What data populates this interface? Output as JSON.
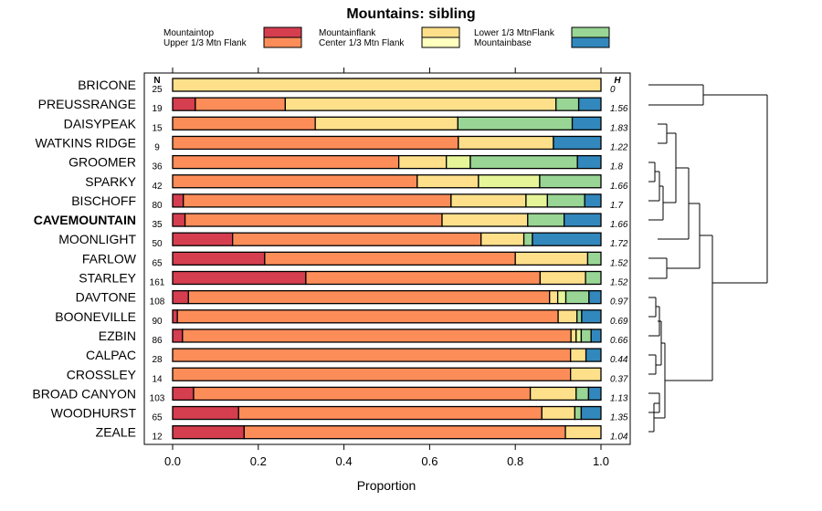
{
  "chart_data": {
    "type": "stacked-horizontal-bar",
    "title": "Mountains: sibling",
    "xlabel": "Proportion",
    "xlim": [
      0,
      1
    ],
    "x_ticks": [
      "0.0",
      "0.2",
      "0.4",
      "0.6",
      "0.8",
      "1.0"
    ],
    "n_header": "N",
    "h_header": "H",
    "legend": [
      {
        "name": "Mountaintop",
        "color": "#d53e4f"
      },
      {
        "name": "Upper 1/3 Mtn Flank",
        "color": "#fc8d59"
      },
      {
        "name": "Mountainflank",
        "color": "#fee08b"
      },
      {
        "name": "Center 1/3 Mtn Flank",
        "color": "#ffffbf"
      },
      {
        "name": "Lower 1/3 MtnFlank",
        "color": "#99d594"
      },
      {
        "name": "Mountainbase",
        "color": "#3288bd"
      }
    ],
    "segment_colors": [
      "#d53e4f",
      "#fc8d59",
      "#fee08b",
      "#e6f598",
      "#99d594",
      "#3288bd"
    ],
    "rows": [
      {
        "label": "BRICONE",
        "n": "25",
        "h": "0",
        "bold": false,
        "values": [
          0,
          0,
          1.0,
          0,
          0,
          0
        ]
      },
      {
        "label": "PREUSSRANGE",
        "n": "19",
        "h": "1.56",
        "bold": false,
        "values": [
          0.053,
          0.21,
          0.632,
          0,
          0.053,
          0.052
        ]
      },
      {
        "label": "DAISYPEAK",
        "n": "15",
        "h": "1.83",
        "bold": false,
        "values": [
          0,
          0.333,
          0.333,
          0,
          0.267,
          0.067
        ]
      },
      {
        "label": "WATKINS RIDGE",
        "n": "9",
        "h": "1.22",
        "bold": false,
        "values": [
          0,
          0.667,
          0.222,
          0,
          0,
          0.111
        ]
      },
      {
        "label": "GROOMER",
        "n": "36",
        "h": "1.8",
        "bold": false,
        "values": [
          0,
          0.528,
          0.111,
          0.056,
          0.25,
          0.055
        ]
      },
      {
        "label": "SPARKY",
        "n": "42",
        "h": "1.66",
        "bold": false,
        "values": [
          0,
          0.571,
          0.143,
          0.143,
          0.143,
          0
        ]
      },
      {
        "label": "BISCHOFF",
        "n": "80",
        "h": "1.7",
        "bold": false,
        "values": [
          0.025,
          0.625,
          0.175,
          0.05,
          0.087,
          0.038
        ]
      },
      {
        "label": "CAVEMOUNTAIN",
        "n": "35",
        "h": "1.66",
        "bold": true,
        "values": [
          0.029,
          0.6,
          0.2,
          0,
          0.085,
          0.086
        ]
      },
      {
        "label": "MOONLIGHT",
        "n": "50",
        "h": "1.72",
        "bold": false,
        "values": [
          0.14,
          0.58,
          0.1,
          0,
          0.02,
          0.16
        ]
      },
      {
        "label": "FARLOW",
        "n": "65",
        "h": "1.52",
        "bold": false,
        "values": [
          0.215,
          0.585,
          0.169,
          0,
          0.031,
          0
        ]
      },
      {
        "label": "STARLEY",
        "n": "161",
        "h": "1.52",
        "bold": false,
        "values": [
          0.311,
          0.547,
          0.106,
          0,
          0.036,
          0
        ]
      },
      {
        "label": "DAVTONE",
        "n": "108",
        "h": "0.97",
        "bold": false,
        "values": [
          0.037,
          0.843,
          0.019,
          0.019,
          0.054,
          0.028
        ]
      },
      {
        "label": "BOONEVILLE",
        "n": "90",
        "h": "0.69",
        "bold": false,
        "values": [
          0.011,
          0.889,
          0.044,
          0,
          0.011,
          0.045
        ]
      },
      {
        "label": "EZBIN",
        "n": "86",
        "h": "0.66",
        "bold": false,
        "values": [
          0.023,
          0.907,
          0.012,
          0.012,
          0.023,
          0.023
        ]
      },
      {
        "label": "CALPAC",
        "n": "28",
        "h": "0.44",
        "bold": false,
        "values": [
          0,
          0.929,
          0.036,
          0,
          0,
          0.035
        ]
      },
      {
        "label": "CROSSLEY",
        "n": "14",
        "h": "0.37",
        "bold": false,
        "values": [
          0,
          0.929,
          0.071,
          0,
          0,
          0
        ]
      },
      {
        "label": "BROAD CANYON",
        "n": "103",
        "h": "1.13",
        "bold": false,
        "values": [
          0.049,
          0.786,
          0.107,
          0,
          0.029,
          0.029
        ]
      },
      {
        "label": "WOODHURST",
        "n": "65",
        "h": "1.35",
        "bold": false,
        "values": [
          0.154,
          0.708,
          0.077,
          0,
          0.015,
          0.046
        ]
      },
      {
        "label": "ZEALE",
        "n": "12",
        "h": "1.04",
        "bold": false,
        "values": [
          0.167,
          0.75,
          0.083,
          0,
          0,
          0
        ]
      }
    ]
  }
}
